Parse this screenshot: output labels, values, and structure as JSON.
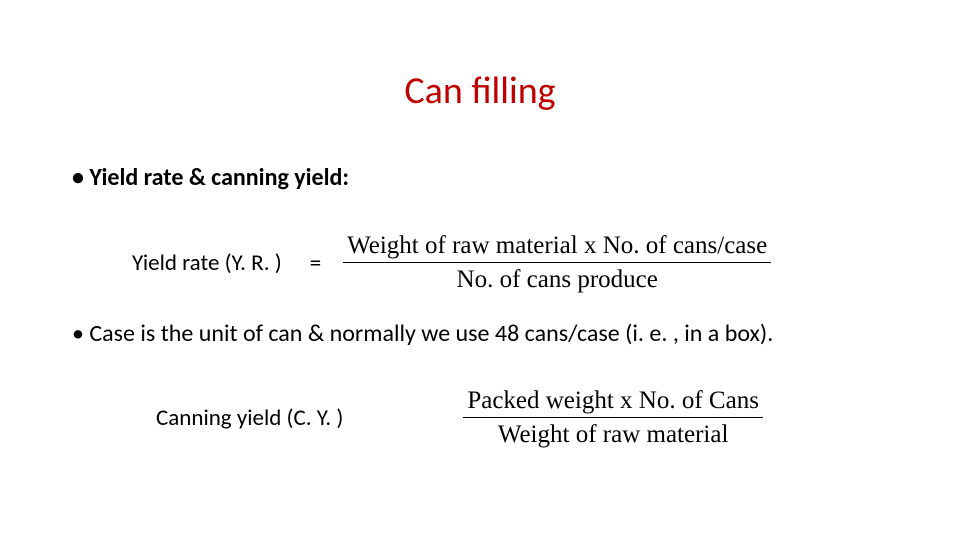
{
  "title": "Can filling",
  "bullet1": "• Yield rate & canning yield:",
  "formula1": {
    "lhs": "Yield rate (Y. R. )",
    "eq": "=",
    "num": "Weight of raw material x No. of cans/case",
    "den": "No. of cans produce"
  },
  "bullet2": "• Case is the unit of can & normally we use 48 cans/case (i. e. , in a box).",
  "formula2": {
    "lhs": "Canning yield (C. Y. )",
    "num": "Packed weight x No. of Cans",
    "den": "Weight of raw material"
  },
  "colors": {
    "title": "#c00000",
    "text": "#000000",
    "background": "#ffffff"
  },
  "fonts": {
    "body": "Calibri",
    "fraction": "Times New Roman",
    "title_size": 38,
    "bullet_size": 24,
    "formula_size": 23,
    "fraction_size": 25
  }
}
